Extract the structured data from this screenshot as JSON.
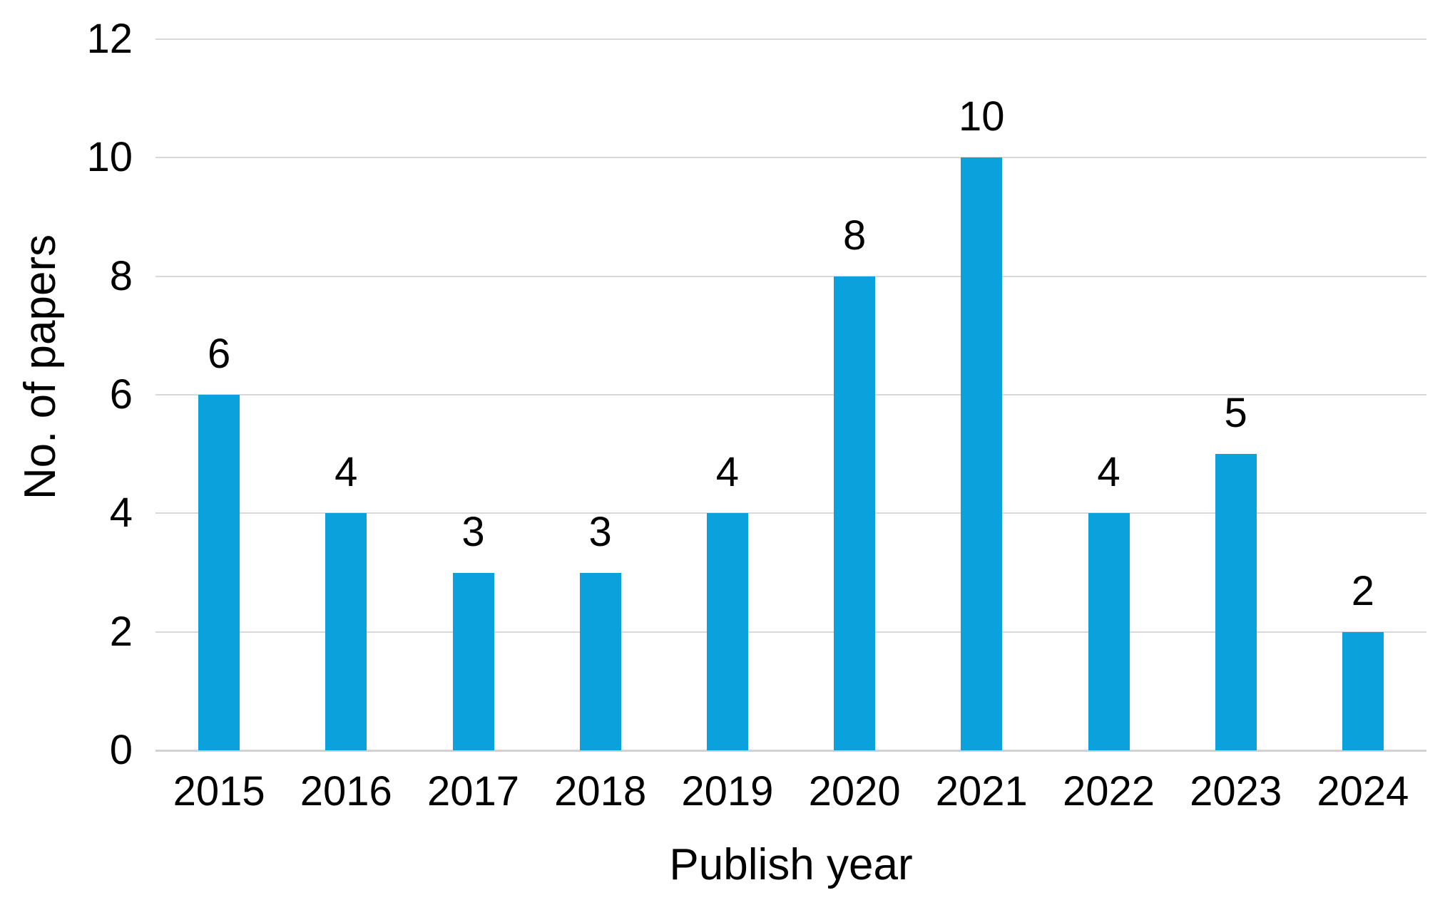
{
  "chart_data": {
    "type": "bar",
    "title": "",
    "categories": [
      "2015",
      "2016",
      "2017",
      "2018",
      "2019",
      "2020",
      "2021",
      "2022",
      "2023",
      "2024"
    ],
    "values": [
      6,
      4,
      3,
      3,
      4,
      8,
      10,
      4,
      5,
      2
    ],
    "xlabel": "Publish year",
    "ylabel": "No. of papers",
    "ylim": [
      0,
      12
    ],
    "y_ticks": [
      0,
      2,
      4,
      6,
      8,
      10,
      12
    ],
    "grid": "horizontal-only",
    "legend_position": "none",
    "data_labels_shown": true,
    "colors": {
      "bar": "#0AA1DC",
      "gridline": "#D9D9D9",
      "baseline": "#D2D2D2",
      "text": "#000000",
      "background": "#FFFFFF"
    }
  }
}
